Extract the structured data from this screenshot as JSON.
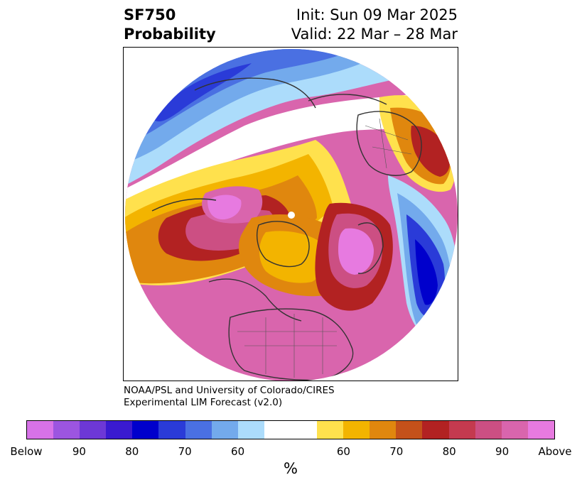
{
  "title": {
    "left_line1": "SF750",
    "left_line2": "Probability",
    "right_line1": "Init: Sun 09 Mar 2025",
    "right_line2": "Valid: 22 Mar – 28 Mar"
  },
  "credit": {
    "line1": "NOAA/PSL and University of Colorado/CIRES",
    "line2": "Experimental LIM Forecast (v2.0)"
  },
  "colorbar": {
    "colors": [
      "#d772e8",
      "#9c55e0",
      "#6d38d6",
      "#3a1ad0",
      "#0000cc",
      "#2a3bd8",
      "#4a70e2",
      "#73aaec",
      "#acdcfb",
      "#ffffff",
      "#ffffff",
      "#ffe14d",
      "#f3b400",
      "#e0870e",
      "#c4511a",
      "#b22222",
      "#c43a4f",
      "#cc4f83",
      "#d965ad",
      "#e77ae0"
    ],
    "labels": [
      "Below",
      "90",
      "80",
      "70",
      "60",
      "60",
      "70",
      "80",
      "90",
      "Above"
    ],
    "unit": "%"
  },
  "map": {
    "projection": "north-polar-stereographic",
    "field": "SF750 probability",
    "land_outline_color": "#333333"
  }
}
